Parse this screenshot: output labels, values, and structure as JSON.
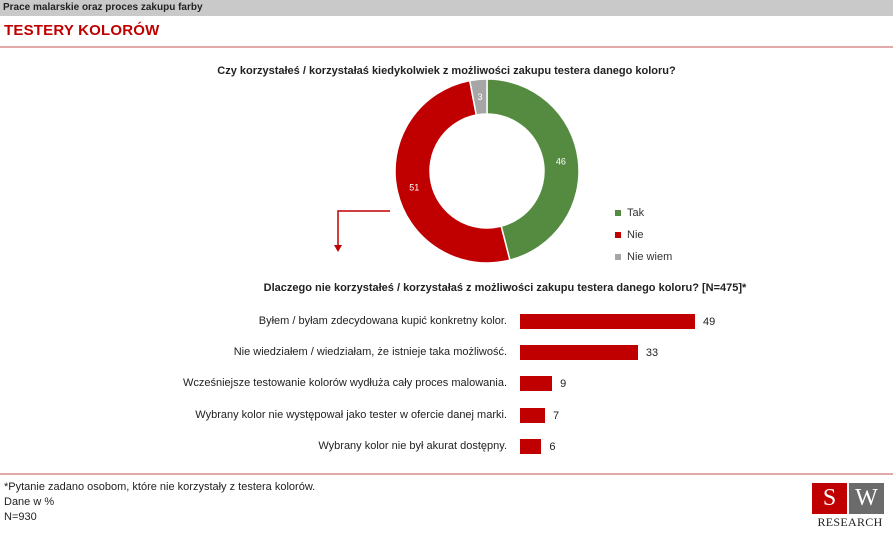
{
  "header": {
    "topbar_title": "Prace malarskie oraz proces zakupu farby",
    "section_title": "TESTERY KOLORÓW"
  },
  "chart_data": [
    {
      "type": "pie",
      "donut": true,
      "title": "Czy korzystałeś / korzystałaś kiedykolwiek z możliwości zakupu testera danego koloru?",
      "categories": [
        "Tak",
        "Nie",
        "Nie wiem"
      ],
      "values": [
        46,
        51,
        3
      ],
      "colors": [
        "#548b41",
        "#c00000",
        "#a6a6a6"
      ],
      "legend_position": "right"
    },
    {
      "type": "bar",
      "orientation": "horizontal",
      "title": "Dlaczego nie korzystałeś / korzystałaś z możliwości zakupu testera danego koloru? [N=475]*",
      "categories": [
        "Byłem / byłam zdecydowana kupić konkretny kolor.",
        "Nie wiedziałem / wiedziałam, że istnieje taka możliwość.",
        "Wcześniejsze testowanie kolorów wydłuża cały proces malowania.",
        "Wybrany kolor nie występował jako tester w ofercie danej marki.",
        "Wybrany kolor nie był akurat dostępny."
      ],
      "values": [
        49,
        33,
        9,
        7,
        6
      ],
      "color": "#c00000"
    }
  ],
  "footnote": {
    "line1": "*Pytanie zadano osobom, które nie korzystały z testera kolorów.",
    "line2": "Dane w %",
    "line3": "N=930"
  },
  "logo": {
    "letter1": "S",
    "letter2": "W",
    "text": "RESEARCH",
    "colors": [
      "#c00000",
      "#6b6b6b"
    ]
  }
}
